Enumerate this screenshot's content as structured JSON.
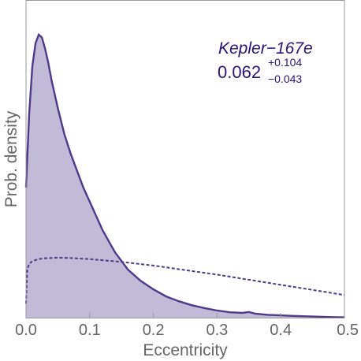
{
  "chart_data": {
    "type": "area",
    "title": "",
    "xlabel": "Eccentricity",
    "ylabel": "Prob. density",
    "xlim": [
      0,
      0.5
    ],
    "ylim": [
      0,
      1
    ],
    "x_ticks": [
      "0.0",
      "0.1",
      "0.2",
      "0.3",
      "0.4",
      "0.5"
    ],
    "x_tick_values": [
      0,
      0.1,
      0.2,
      0.3,
      0.4,
      0.5
    ],
    "grid": false,
    "annotation": {
      "name": "Kepler−167e",
      "value": "0.062",
      "upper": "+0.104",
      "lower": "−0.043"
    },
    "colors": {
      "line": "#4f3a8a",
      "fill": "#c2bbd8",
      "annotation": "#2a1478",
      "frame": "#999999"
    },
    "series": [
      {
        "style": "solid-filled",
        "x": [
          0.0,
          0.005,
          0.01,
          0.015,
          0.02,
          0.025,
          0.03,
          0.035,
          0.04,
          0.05,
          0.06,
          0.07,
          0.08,
          0.09,
          0.1,
          0.11,
          0.12,
          0.13,
          0.14,
          0.15,
          0.16,
          0.18,
          0.2,
          0.22,
          0.24,
          0.26,
          0.28,
          0.3,
          0.32,
          0.34,
          0.35,
          0.36,
          0.38,
          0.4,
          0.42,
          0.45,
          0.48,
          0.5
        ],
        "y": [
          0.46,
          0.72,
          0.89,
          0.97,
          1.0,
          0.99,
          0.95,
          0.9,
          0.84,
          0.74,
          0.65,
          0.58,
          0.52,
          0.46,
          0.41,
          0.36,
          0.31,
          0.27,
          0.23,
          0.2,
          0.17,
          0.13,
          0.1,
          0.075,
          0.058,
          0.044,
          0.034,
          0.025,
          0.019,
          0.017,
          0.02,
          0.014,
          0.01,
          0.008,
          0.006,
          0.004,
          0.002,
          0.001
        ]
      },
      {
        "style": "dashed",
        "x": [
          0.0,
          0.002,
          0.005,
          0.01,
          0.02,
          0.03,
          0.05,
          0.07,
          0.1,
          0.15,
          0.2,
          0.25,
          0.3,
          0.35,
          0.4,
          0.45,
          0.5
        ],
        "y": [
          0.05,
          0.17,
          0.19,
          0.2,
          0.207,
          0.21,
          0.212,
          0.211,
          0.207,
          0.197,
          0.184,
          0.168,
          0.152,
          0.134,
          0.116,
          0.098,
          0.08
        ]
      }
    ]
  }
}
